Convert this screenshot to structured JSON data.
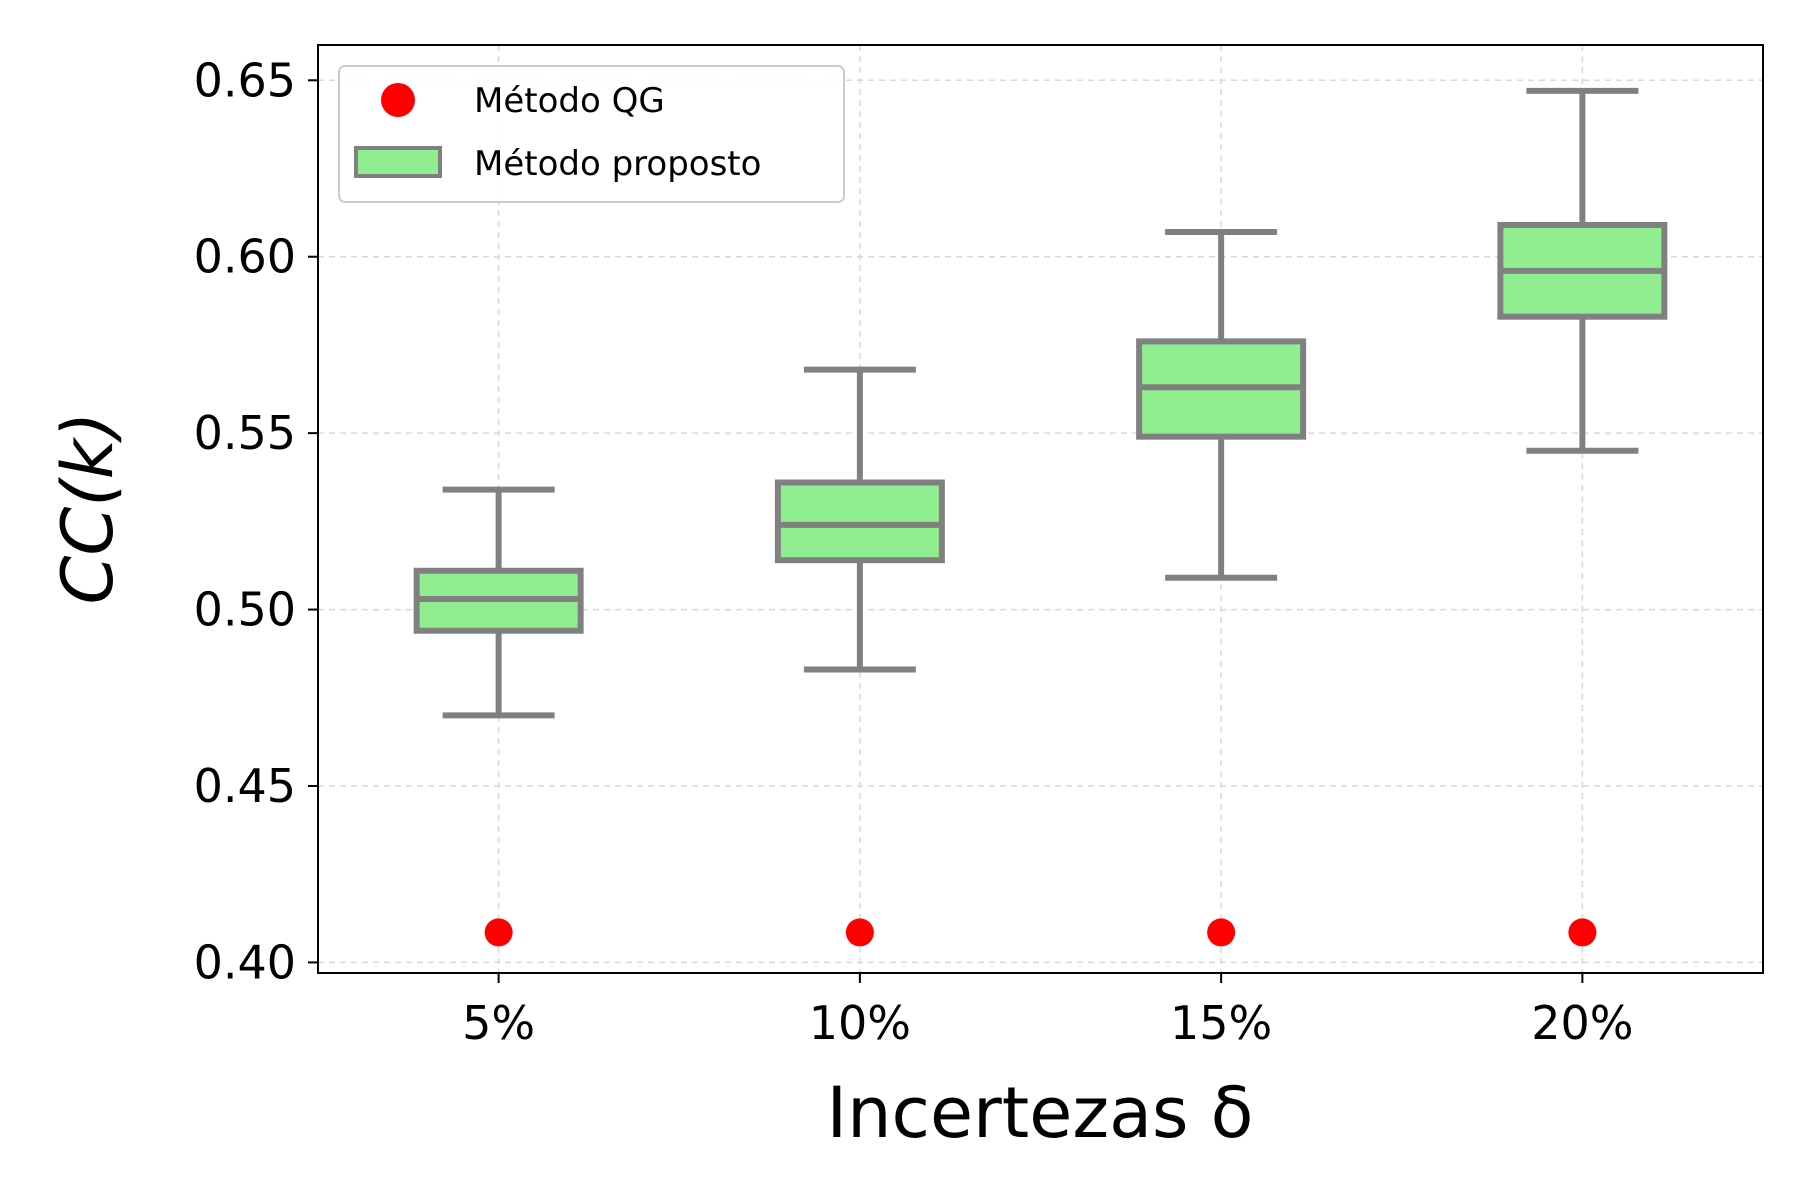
{
  "chart_data": {
    "type": "box",
    "xlabel": "Incertezas δ",
    "ylabel": "CC(k)",
    "categories": [
      "5%",
      "10%",
      "15%",
      "20%"
    ],
    "ylim": [
      0.397,
      0.66
    ],
    "yticks": [
      "0.40",
      "0.45",
      "0.50",
      "0.55",
      "0.60",
      "0.65"
    ],
    "grid": true,
    "legend_position": "top-left",
    "series": [
      {
        "name": "Método proposto",
        "kind": "box",
        "color": "#90ee90",
        "edge_color": "#808080",
        "boxes": [
          {
            "whisker_low": 0.47,
            "q1": 0.494,
            "median": 0.503,
            "q3": 0.511,
            "whisker_high": 0.534
          },
          {
            "whisker_low": 0.483,
            "q1": 0.514,
            "median": 0.524,
            "q3": 0.536,
            "whisker_high": 0.568
          },
          {
            "whisker_low": 0.509,
            "q1": 0.549,
            "median": 0.563,
            "q3": 0.576,
            "whisker_high": 0.607
          },
          {
            "whisker_low": 0.545,
            "q1": 0.583,
            "median": 0.596,
            "q3": 0.609,
            "whisker_high": 0.647
          }
        ]
      },
      {
        "name": "Método QG",
        "kind": "scatter",
        "color": "#ff0000",
        "values": [
          0.4085,
          0.4085,
          0.4085,
          0.4085
        ]
      }
    ]
  }
}
